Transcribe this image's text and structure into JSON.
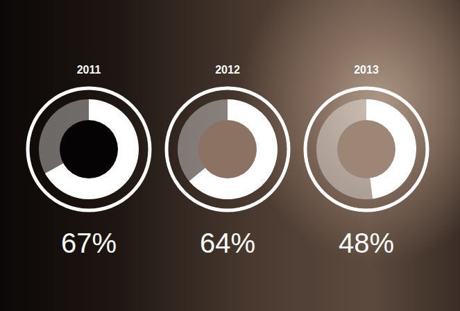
{
  "chart_data": {
    "type": "donut",
    "categories": [
      "2011",
      "2012",
      "2013"
    ],
    "values": [
      67,
      64,
      48
    ],
    "value_labels": [
      "67%",
      "64%",
      "48%"
    ],
    "ylim": [
      0,
      100
    ],
    "tick_labels": false,
    "data_labels": true,
    "color": "#ffffff"
  }
}
